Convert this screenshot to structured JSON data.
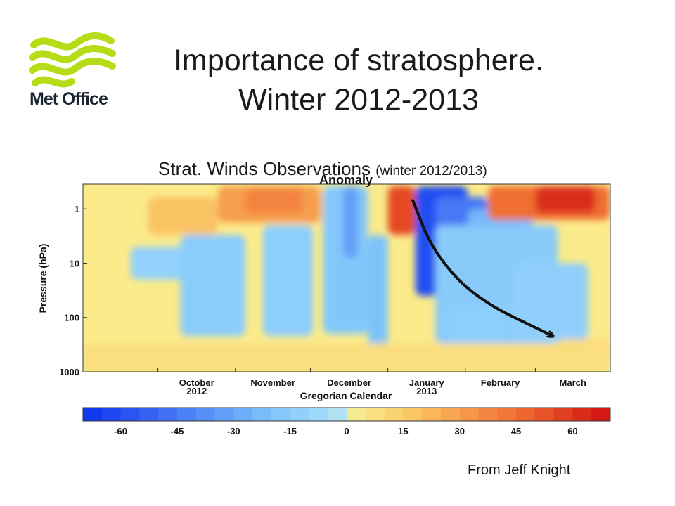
{
  "logo": {
    "text": "Met Office"
  },
  "title": {
    "line1": "Importance of stratosphere.",
    "line2": "Winter 2012-2013"
  },
  "subtitle": {
    "main": "Strat. Winds Observations",
    "small": "(winter 2012/2013)"
  },
  "credit": "From Jeff Knight",
  "chart_data": {
    "type": "heatmap",
    "panel_title_partial": "Anomaly",
    "ylabel": "Pressure (hPa)",
    "xlabel": "Gregorian Calendar",
    "y_scale": "log",
    "y_ticks": [
      1,
      10,
      100,
      1000
    ],
    "y_range": [
      0.35,
      1000
    ],
    "x_ticks": [
      {
        "month": "October",
        "year": "2012"
      },
      {
        "month": "November",
        "year": ""
      },
      {
        "month": "December",
        "year": ""
      },
      {
        "month": "January",
        "year": "2013"
      },
      {
        "month": "February",
        "year": ""
      },
      {
        "month": "March",
        "year": ""
      }
    ],
    "x_range": [
      "2012-09-01",
      "2013-03-31"
    ],
    "colorbar": {
      "ticks": [
        -60,
        -45,
        -30,
        -15,
        0,
        15,
        30,
        45,
        60
      ],
      "range": [
        -70,
        70
      ],
      "step": 5
    },
    "annotation_arrow": {
      "points": [
        [
          "2013-01-11",
          0.7
        ],
        [
          "2013-01-19",
          6
        ],
        [
          "2013-02-05",
          45
        ],
        [
          "2013-03-08",
          220
        ]
      ]
    },
    "colors": {
      "cold": "#0a3af0",
      "neutral_blue": "#a8e0fb",
      "neutral_yellow": "#fbeb8a",
      "warm": "#dc1010"
    }
  }
}
